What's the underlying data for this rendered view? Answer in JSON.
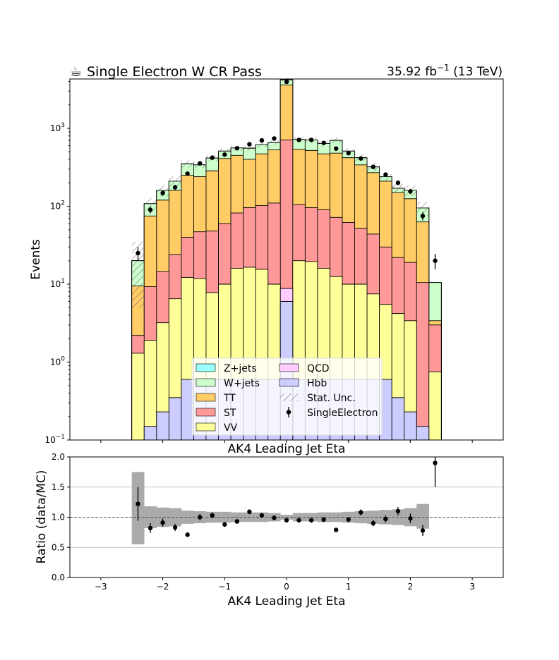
{
  "chart_data": [
    {
      "type": "stacked-histogram",
      "title_left": "Single Electron W CR Pass",
      "title_icon": "coffee-cup-icon",
      "lumi_label": "35.92 fb",
      "lumi_exp": "−1",
      "lumi_energy": " (13 TeV)",
      "xlabel": "AK4 Leading Jet Eta",
      "ylabel": "Events",
      "yscale": "log",
      "ylim": [
        0.1,
        4300
      ],
      "xlim": [
        -3.5,
        3.5
      ],
      "bin_edges": [
        -2.5,
        -2.3,
        -2.1,
        -1.9,
        -1.7,
        -1.5,
        -1.3,
        -1.1,
        -0.9,
        -0.7,
        -0.5,
        -0.3,
        -0.1,
        0.1,
        0.3,
        0.5,
        0.7,
        0.9,
        1.1,
        1.3,
        1.5,
        1.7,
        1.9,
        2.1,
        2.3,
        2.5
      ],
      "x_ticks": [
        -3,
        -2,
        -1,
        0,
        1,
        2,
        3
      ],
      "x_tick_labels": [
        "−3",
        "−2",
        "−1",
        "0",
        "1",
        "2",
        "3"
      ],
      "y_ticks": [
        0.1,
        1,
        10,
        100,
        1000
      ],
      "y_tick_labels": [
        {
          "base": "10",
          "exp": "−1"
        },
        {
          "base": "10",
          "exp": "0"
        },
        {
          "base": "10",
          "exp": "1"
        },
        {
          "base": "10",
          "exp": "2"
        },
        {
          "base": "10",
          "exp": "3"
        }
      ],
      "stack": [
        {
          "name": "Hbb",
          "color": "#ccccff",
          "values": [
            0.05,
            0.15,
            0.23,
            0.35,
            0.6,
            0.6,
            0.6,
            0.6,
            0.6,
            0.6,
            0.6,
            0.6,
            6.0,
            0.6,
            0.6,
            0.6,
            0.6,
            0.6,
            0.6,
            0.6,
            0.6,
            0.35,
            0.23,
            0.15,
            0.05
          ]
        },
        {
          "name": "VV",
          "color": "#ffff99",
          "values": [
            1.3,
            1.9,
            3.2,
            6.5,
            12.2,
            11.8,
            7.8,
            10.0,
            16.0,
            16.5,
            15.5,
            10.0,
            6.0,
            20.0,
            19.5,
            16.0,
            12.5,
            10.0,
            10.0,
            7.5,
            5.5,
            4.2,
            3.4,
            0.0,
            0.75
          ]
        },
        {
          "name": "ST",
          "color": "#ff9999",
          "values": [
            2.2,
            9.3,
            14.5,
            24.0,
            40.0,
            47.0,
            48.0,
            60.0,
            82.0,
            96.0,
            102.0,
            110.0,
            710.0,
            105.0,
            96.0,
            90.0,
            72.0,
            62.0,
            52.0,
            44.0,
            30.0,
            22.0,
            19.0,
            10.5,
            3.0
          ]
        },
        {
          "name": "TT",
          "color": "#ffcc66",
          "values": [
            9.5,
            75.0,
            120.0,
            160.0,
            250.0,
            240.0,
            285.0,
            410.0,
            450.0,
            400.0,
            470.0,
            530.0,
            3600.0,
            540.0,
            520.0,
            470.0,
            480.0,
            420.0,
            340.0,
            270.0,
            210.0,
            150.0,
            125.0,
            63.0,
            3.4
          ]
        },
        {
          "name": "W+jets",
          "color": "#ccffcc",
          "values": [
            20.0,
            108.0,
            160.0,
            210.0,
            350.0,
            340.0,
            415.0,
            510.0,
            560.0,
            555.0,
            620.0,
            655.0,
            4200.0,
            720.0,
            710.0,
            640.0,
            700.0,
            510.0,
            420.0,
            320.0,
            240.0,
            170.0,
            160.0,
            95.0,
            10.5
          ]
        },
        {
          "name": "QCD",
          "color": "#ffccff",
          "values": [
            20.0,
            108.0,
            160.0,
            210.0,
            350.0,
            340.0,
            415.0,
            510.0,
            560.0,
            555.0,
            620.0,
            655.0,
            4200.0,
            720.0,
            710.0,
            640.0,
            700.0,
            510.0,
            420.0,
            320.0,
            240.0,
            170.0,
            160.0,
            95.0,
            10.5
          ]
        },
        {
          "name": "Z+jets",
          "color": "#99ffff",
          "values": [
            20.0,
            108.0,
            160.0,
            210.0,
            350.0,
            340.0,
            415.0,
            510.0,
            560.0,
            555.0,
            620.0,
            655.0,
            4200.0,
            720.0,
            710.0,
            640.0,
            700.0,
            510.0,
            420.0,
            320.0,
            240.0,
            170.0,
            160.0,
            95.0,
            10.5
          ]
        }
      ],
      "qcd_hbb_center_bin_values": {
        "Hbb": 6.0,
        "QCD_top": 8.8
      },
      "stat_unc_rel": [
        0.75,
        0.18,
        0.16,
        0.15,
        0.11,
        0.1,
        0.09,
        0.08,
        0.08,
        0.08,
        0.08,
        0.07,
        0.04,
        0.07,
        0.07,
        0.08,
        0.08,
        0.09,
        0.1,
        0.11,
        0.12,
        0.13,
        0.15,
        0.2,
        0.0
      ],
      "data": {
        "name": "SingleElectron",
        "x": [
          -2.4,
          -2.2,
          -2.0,
          -1.8,
          -1.6,
          -1.4,
          -1.2,
          -1.0,
          -0.8,
          -0.6,
          -0.4,
          -0.2,
          0.0,
          0.2,
          0.4,
          0.6,
          0.8,
          1.0,
          1.2,
          1.4,
          1.6,
          1.8,
          2.0,
          2.2,
          2.4
        ],
        "y": [
          25,
          90,
          148,
          175,
          262,
          355,
          420,
          460,
          555,
          625,
          700,
          740,
          3950,
          710,
          710,
          650,
          550,
          480,
          410,
          320,
          255,
          200,
          155,
          75,
          20
        ],
        "yerr": [
          5,
          9,
          12,
          13,
          16,
          19,
          20,
          21,
          23,
          25,
          26,
          27,
          63,
          27,
          27,
          25,
          23,
          22,
          20,
          18,
          16,
          14,
          12,
          9,
          4.5
        ]
      },
      "legend": {
        "placement": "lower-center",
        "entries": [
          {
            "label": "Z+jets",
            "kind": "box",
            "color": "#99ffff"
          },
          {
            "label": "QCD",
            "kind": "box",
            "color": "#ffccff"
          },
          {
            "label": "W+jets",
            "kind": "box",
            "color": "#ccffcc"
          },
          {
            "label": "Hbb",
            "kind": "box",
            "color": "#ccccff"
          },
          {
            "label": "TT",
            "kind": "box",
            "color": "#ffcc66"
          },
          {
            "label": "Stat. Unc.",
            "kind": "hatch",
            "color": "#777777"
          },
          {
            "label": "ST",
            "kind": "box",
            "color": "#ff9999"
          },
          {
            "label": "SingleElectron",
            "kind": "marker",
            "color": "#000000"
          },
          {
            "label": "VV",
            "kind": "box",
            "color": "#ffff99"
          }
        ]
      }
    },
    {
      "type": "ratio",
      "title": "AK4 Leading Jet Eta",
      "xlabel": "AK4 Leading Jet Eta",
      "ylabel": "Ratio (data/MC)",
      "ylim": [
        0.0,
        2.0
      ],
      "xlim": [
        -3.5,
        3.5
      ],
      "y_ticks": [
        0.0,
        0.5,
        1.0,
        1.5,
        2.0
      ],
      "y_tick_labels": [
        "0.0",
        "0.5",
        "1.0",
        "1.5",
        "2.0"
      ],
      "x_ticks": [
        -3,
        -2,
        -1,
        0,
        1,
        2,
        3
      ],
      "x_tick_labels": [
        "−3",
        "−2",
        "−1",
        "0",
        "1",
        "2",
        "3"
      ],
      "reference_line": 1.0,
      "unc_band": {
        "lo": [
          0.55,
          0.82,
          0.84,
          0.85,
          0.89,
          0.9,
          0.91,
          0.91,
          0.92,
          0.92,
          0.92,
          0.93,
          0.96,
          0.93,
          0.93,
          0.92,
          0.92,
          0.91,
          0.9,
          0.89,
          0.88,
          0.87,
          0.85,
          0.81,
          null
        ],
        "hi": [
          1.75,
          1.18,
          1.16,
          1.15,
          1.11,
          1.1,
          1.09,
          1.09,
          1.08,
          1.08,
          1.08,
          1.07,
          1.04,
          1.07,
          1.07,
          1.08,
          1.08,
          1.09,
          1.1,
          1.11,
          1.12,
          1.13,
          1.15,
          1.22,
          null
        ],
        "color": "#aaaaaa"
      },
      "points": {
        "x": [
          -2.4,
          -2.2,
          -2.0,
          -1.8,
          -1.6,
          -1.4,
          -1.2,
          -1.0,
          -0.8,
          -0.6,
          -0.4,
          -0.2,
          0.0,
          0.2,
          0.4,
          0.6,
          0.8,
          1.0,
          1.2,
          1.4,
          1.6,
          1.8,
          2.0,
          2.2,
          2.4
        ],
        "y": [
          1.22,
          0.82,
          0.91,
          0.83,
          0.71,
          1.0,
          1.03,
          0.88,
          0.93,
          1.09,
          1.03,
          0.99,
          0.95,
          0.95,
          0.95,
          0.96,
          0.79,
          0.96,
          1.08,
          0.9,
          0.97,
          1.1,
          0.98,
          0.78,
          1.9
        ],
        "yerr": [
          0.28,
          0.08,
          0.07,
          0.06,
          0.04,
          0.05,
          0.05,
          0.04,
          0.04,
          0.04,
          0.04,
          0.04,
          0.02,
          0.04,
          0.04,
          0.04,
          0.03,
          0.04,
          0.05,
          0.05,
          0.06,
          0.07,
          0.08,
          0.09,
          0.4
        ]
      }
    }
  ]
}
